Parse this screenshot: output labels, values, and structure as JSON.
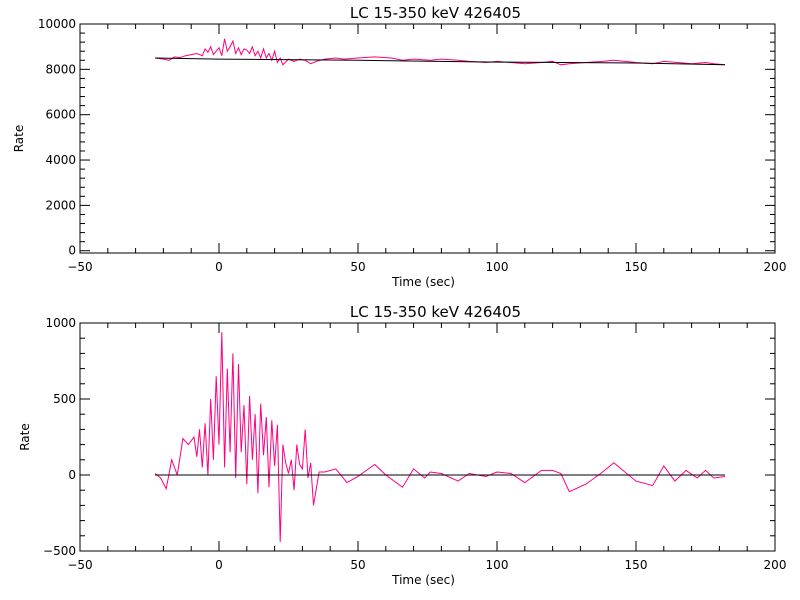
{
  "chart_data": [
    {
      "type": "line",
      "title": "LC 15-350 keV  426405",
      "xlabel": "Time (sec)",
      "ylabel": "Rate",
      "xlim": [
        -50,
        200
      ],
      "ylim": [
        -100,
        10000
      ],
      "xticks": [
        -50,
        0,
        50,
        100,
        150,
        200
      ],
      "xtick_labels": [
        "−50",
        "0",
        "50",
        "100",
        "150",
        "200"
      ],
      "yticks": [
        0,
        2000,
        4000,
        6000,
        8000,
        10000
      ],
      "ytick_labels": [
        "0",
        "2000",
        "4000",
        "6000",
        "8000",
        "10000"
      ],
      "grid": false,
      "series": [
        {
          "color": "#ff0080",
          "x": [
            -23,
            -20,
            -18,
            -16,
            -14,
            -12,
            -10,
            -8,
            -6,
            -5,
            -4,
            -3,
            -2,
            -1,
            0,
            1,
            2,
            3,
            4,
            5,
            6,
            7,
            8,
            9,
            10,
            11,
            12,
            13,
            14,
            15,
            16,
            17,
            18,
            19,
            20,
            21,
            22,
            23,
            25,
            27,
            29,
            31,
            33,
            35,
            38,
            42,
            45,
            50,
            56,
            62,
            66,
            70,
            76,
            80,
            86,
            90,
            96,
            100,
            105,
            110,
            116,
            120,
            123,
            126,
            132,
            138,
            142,
            146,
            150,
            156,
            160,
            165,
            170,
            175,
            178,
            182
          ],
          "y": [
            8500,
            8450,
            8400,
            8550,
            8520,
            8600,
            8650,
            8700,
            8600,
            8900,
            8750,
            9000,
            8650,
            8800,
            8950,
            8600,
            9350,
            8800,
            9000,
            9250,
            8700,
            8950,
            8650,
            8900,
            8850,
            8700,
            9000,
            8600,
            8800,
            8500,
            8900,
            8500,
            8700,
            8400,
            8800,
            8300,
            8500,
            8200,
            8450,
            8350,
            8450,
            8400,
            8250,
            8350,
            8450,
            8500,
            8450,
            8500,
            8550,
            8500,
            8400,
            8450,
            8400,
            8450,
            8400,
            8350,
            8300,
            8350,
            8300,
            8250,
            8300,
            8350,
            8200,
            8250,
            8300,
            8350,
            8400,
            8350,
            8300,
            8250,
            8350,
            8300,
            8250,
            8300,
            8250,
            8200
          ]
        },
        {
          "color": "#000000",
          "x": [
            -23,
            0,
            50,
            100,
            150,
            182
          ],
          "y": [
            8500,
            8450,
            8400,
            8320,
            8280,
            8200
          ]
        }
      ]
    },
    {
      "type": "line",
      "title": "LC 15-350 keV  426405",
      "xlabel": "Time (sec)",
      "ylabel": "Rate",
      "xlim": [
        -50,
        200
      ],
      "ylim": [
        -500,
        1000
      ],
      "xticks": [
        -50,
        0,
        50,
        100,
        150,
        200
      ],
      "xtick_labels": [
        "−50",
        "0",
        "50",
        "100",
        "150",
        "200"
      ],
      "yticks": [
        -500,
        0,
        500,
        1000
      ],
      "ytick_labels": [
        "−500",
        "0",
        "500",
        "1000"
      ],
      "grid": false,
      "series": [
        {
          "color": "#ff0080",
          "x": [
            -23,
            -21,
            -19,
            -17,
            -15,
            -13,
            -11,
            -9,
            -8,
            -7,
            -6,
            -5,
            -4,
            -3,
            -2,
            -1,
            0,
            1,
            2,
            3,
            4,
            5,
            6,
            7,
            8,
            9,
            10,
            11,
            12,
            13,
            14,
            15,
            16,
            17,
            18,
            19,
            20,
            21,
            22,
            23,
            24,
            25,
            26,
            27,
            28,
            29,
            30,
            31,
            32,
            33,
            34,
            36,
            38,
            42,
            46,
            50,
            56,
            60,
            66,
            70,
            74,
            76,
            80,
            86,
            90,
            96,
            100,
            105,
            110,
            116,
            120,
            123,
            126,
            132,
            138,
            142,
            146,
            150,
            156,
            160,
            164,
            168,
            172,
            175,
            178,
            182
          ],
          "y": [
            10,
            -20,
            -90,
            100,
            0,
            240,
            200,
            250,
            120,
            300,
            50,
            340,
            0,
            500,
            100,
            650,
            200,
            940,
            50,
            700,
            150,
            800,
            -20,
            730,
            150,
            460,
            -60,
            520,
            100,
            400,
            -120,
            470,
            130,
            380,
            -80,
            360,
            60,
            330,
            -440,
            200,
            80,
            10,
            100,
            -100,
            200,
            70,
            40,
            300,
            -20,
            80,
            -200,
            20,
            20,
            40,
            -50,
            -10,
            70,
            0,
            -80,
            40,
            -20,
            20,
            10,
            -40,
            10,
            -10,
            20,
            10,
            -50,
            30,
            30,
            10,
            -110,
            -60,
            20,
            80,
            20,
            -40,
            -70,
            60,
            -40,
            30,
            -20,
            30,
            -20,
            -10
          ]
        },
        {
          "color": "#000000",
          "x": [
            -23,
            182
          ],
          "y": [
            0,
            0
          ]
        }
      ]
    }
  ]
}
